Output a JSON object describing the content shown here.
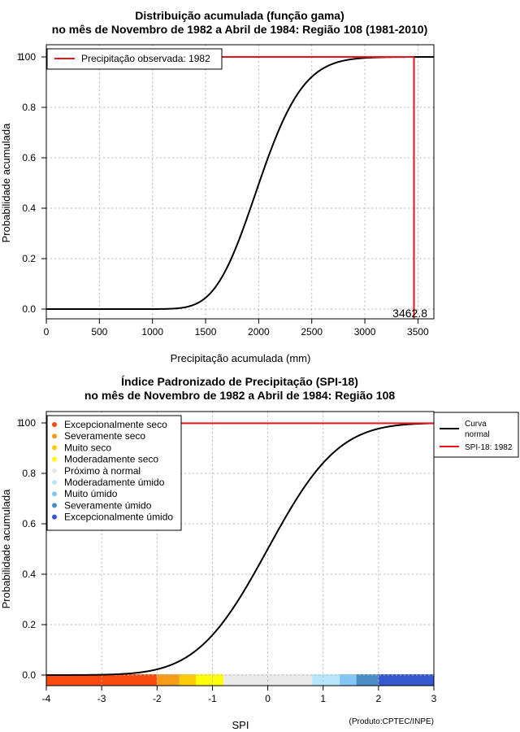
{
  "chart_data": [
    {
      "type": "line",
      "title": "Distribuição acumulada (função gama)",
      "subtitle": "no mês de Novembro de 1982 a Abril de 1984: Região 108 (1981-2010)",
      "xlabel": "Precipitação acumulada (mm)",
      "ylabel": "Probabilidade acumulada",
      "xlim": [
        0,
        3650
      ],
      "ylim": [
        0,
        1.0
      ],
      "xticks": [
        "0",
        "500",
        "1000",
        "1500",
        "2000",
        "2500",
        "3000",
        "3500"
      ],
      "xtick_values": [
        0,
        500,
        1000,
        1500,
        2000,
        2500,
        3000,
        3500
      ],
      "yticks": [
        "0.0",
        "0.2",
        "0.4",
        "0.6",
        "0.8",
        "1.00"
      ],
      "ytick_values": [
        0,
        0.2,
        0.4,
        0.6,
        0.8,
        1.0
      ],
      "ytop_overlap_label": "1",
      "grid": true,
      "gamma": {
        "shape": 38.0,
        "scale": 53.2
      },
      "curve_start_x": 0,
      "curve_end_x": 3650,
      "observed": {
        "value": 3462.8,
        "label": "3462.8",
        "color": "#e8141c"
      },
      "legend": {
        "position": "top-left",
        "entries": [
          {
            "label": "Precipitação observada: 1982",
            "color": "#e8141c"
          }
        ]
      }
    },
    {
      "type": "line",
      "title": "Índice Padronizado de Precipitação (SPI-18)",
      "subtitle": "no mês de Novembro de 1982 a Abril de 1984: Região 108",
      "xlabel": "SPI",
      "ylabel": "Probabilidade acumulada",
      "xlim": [
        -4,
        3
      ],
      "ylim": [
        0,
        1.0
      ],
      "xticks": [
        "-4",
        "-3",
        "-2",
        "-1",
        "0",
        "1",
        "2",
        "3"
      ],
      "xtick_values": [
        -4,
        -3,
        -2,
        -1,
        0,
        1,
        2,
        3
      ],
      "yticks": [
        "0.0",
        "0.2",
        "0.4",
        "0.6",
        "0.8",
        "1.00"
      ],
      "ytick_values": [
        0,
        0.2,
        0.4,
        0.6,
        0.8,
        1.0
      ],
      "ytop_overlap_label": "1",
      "grid": true,
      "spi_value": 3.0,
      "color_bands": [
        {
          "from": -4.0,
          "to": -2.0,
          "color": "#fb4a0e"
        },
        {
          "from": -2.0,
          "to": -1.6,
          "color": "#f89a1a"
        },
        {
          "from": -1.6,
          "to": -1.3,
          "color": "#fccb0c"
        },
        {
          "from": -1.3,
          "to": -0.8,
          "color": "#fdfd0c"
        },
        {
          "from": -0.8,
          "to": 0.8,
          "color": "#e9e9e9"
        },
        {
          "from": 0.8,
          "to": 1.3,
          "color": "#b8e6fb"
        },
        {
          "from": 1.3,
          "to": 1.6,
          "color": "#84c6f4"
        },
        {
          "from": 1.6,
          "to": 2.0,
          "color": "#4a8ec8"
        },
        {
          "from": 2.0,
          "to": 3.0,
          "color": "#3659cf"
        }
      ],
      "category_legend": {
        "position": "top-left",
        "entries": [
          {
            "label": "Excepcionalmente seco",
            "color": "#fb4a0e"
          },
          {
            "label": "Severamente seco",
            "color": "#f89a1a"
          },
          {
            "label": "Muito seco",
            "color": "#fccb0c"
          },
          {
            "label": "Moderadamente seco",
            "color": "#fdfd0c"
          },
          {
            "label": "Próximo à normal",
            "color": "#e9e9e9"
          },
          {
            "label": "Moderadamente úmido",
            "color": "#b8e6fb"
          },
          {
            "label": "Muito úmido",
            "color": "#84c6f4"
          },
          {
            "label": "Severamente úmido",
            "color": "#4a8ec8"
          },
          {
            "label": "Excepcionalmente úmido",
            "color": "#3659cf"
          }
        ]
      },
      "series_legend": {
        "position": "top-right-outside",
        "entries": [
          {
            "label": "Curva normal",
            "line1": "Curva",
            "line2": "normal",
            "color": "#000000"
          },
          {
            "label": "SPI-18: 1982",
            "line1": "SPI-18: 1982",
            "line2": "",
            "color": "#e8141c"
          }
        ]
      },
      "credit": "(Produto:CPTEC/INPE)"
    }
  ]
}
